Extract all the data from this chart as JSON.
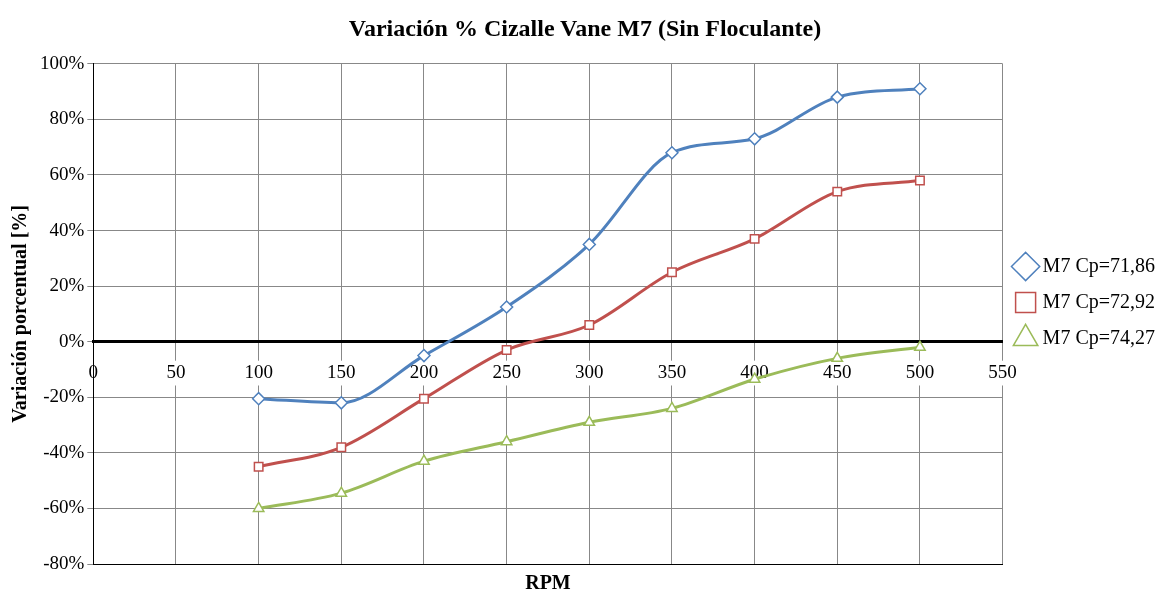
{
  "chart_data": {
    "type": "line",
    "title": "Variación % Cizalle Vane M7 (Sin Floculante)",
    "xlabel": "RPM",
    "ylabel": "Variación porcentual [%]",
    "x": [
      100,
      150,
      200,
      250,
      300,
      350,
      400,
      450,
      500
    ],
    "series": [
      {
        "name": "M7 Cp=71,86",
        "color": "#4f81bd",
        "marker": "diamond",
        "values": [
          -20.5,
          -22,
          -5,
          12.5,
          35,
          68,
          73,
          88,
          91
        ]
      },
      {
        "name": "M7 Cp=72,92",
        "color": "#c0504d",
        "marker": "square",
        "values": [
          -45,
          -38,
          -20.5,
          -3,
          6,
          25,
          37,
          54,
          58
        ]
      },
      {
        "name": "M7 Cp=74,27",
        "color": "#9bbb59",
        "marker": "triangle",
        "values": [
          -60,
          -54.5,
          -43,
          -36,
          -29,
          -24,
          -13.5,
          -6,
          -2
        ]
      }
    ],
    "xlim": [
      0,
      550
    ],
    "xticks": [
      0,
      50,
      100,
      150,
      200,
      250,
      300,
      350,
      400,
      450,
      500,
      550
    ],
    "ylim": [
      -80,
      100
    ],
    "yticks": [
      {
        "value": -80,
        "label": "-80%"
      },
      {
        "value": -60,
        "label": "-60%"
      },
      {
        "value": -40,
        "label": "-40%"
      },
      {
        "value": -20,
        "label": "-20%"
      },
      {
        "value": 0,
        "label": "0%"
      },
      {
        "value": 20,
        "label": "20%"
      },
      {
        "value": 40,
        "label": "40%"
      },
      {
        "value": 60,
        "label": "60%"
      },
      {
        "value": 80,
        "label": "80%"
      },
      {
        "value": 100,
        "label": "100%"
      }
    ],
    "grid": true,
    "legend": "right",
    "line_style": "solid"
  }
}
